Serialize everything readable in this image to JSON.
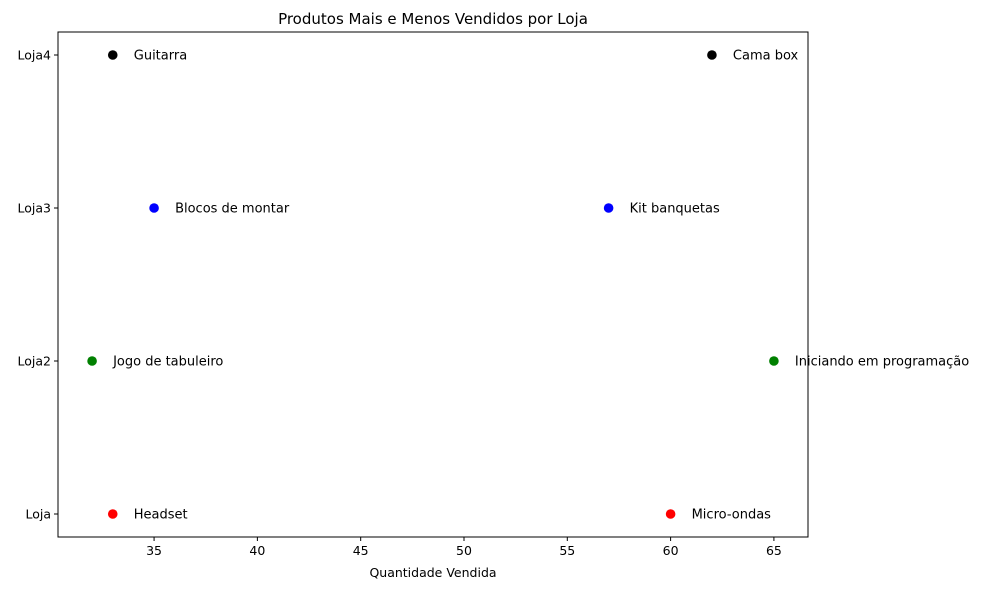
{
  "chart_data": {
    "type": "scatter",
    "title": "Produtos Mais e Menos Vendidos por Loja",
    "xlabel": "Quantidade Vendida",
    "ylabel": "",
    "xlim": [
      30.35,
      66.65
    ],
    "x_ticks": [
      35,
      40,
      45,
      50,
      55,
      60,
      65
    ],
    "categories": [
      "Loja",
      "Loja2",
      "Loja3",
      "Loja4"
    ],
    "grid": false,
    "points": [
      {
        "store": "Loja",
        "x": 33,
        "label": "Headset",
        "color": "#ff0000"
      },
      {
        "store": "Loja",
        "x": 60,
        "label": "Micro-ondas",
        "color": "#ff0000"
      },
      {
        "store": "Loja2",
        "x": 32,
        "label": "Jogo de tabuleiro",
        "color": "#008000"
      },
      {
        "store": "Loja2",
        "x": 65,
        "label": "Iniciando em programação",
        "color": "#008000"
      },
      {
        "store": "Loja3",
        "x": 35,
        "label": "Blocos de montar",
        "color": "#0000ff"
      },
      {
        "store": "Loja3",
        "x": 57,
        "label": "Kit banquetas",
        "color": "#0000ff"
      },
      {
        "store": "Loja4",
        "x": 33,
        "label": "Guitarra",
        "color": "#000000"
      },
      {
        "store": "Loja4",
        "x": 62,
        "label": "Cama box",
        "color": "#000000"
      }
    ]
  }
}
